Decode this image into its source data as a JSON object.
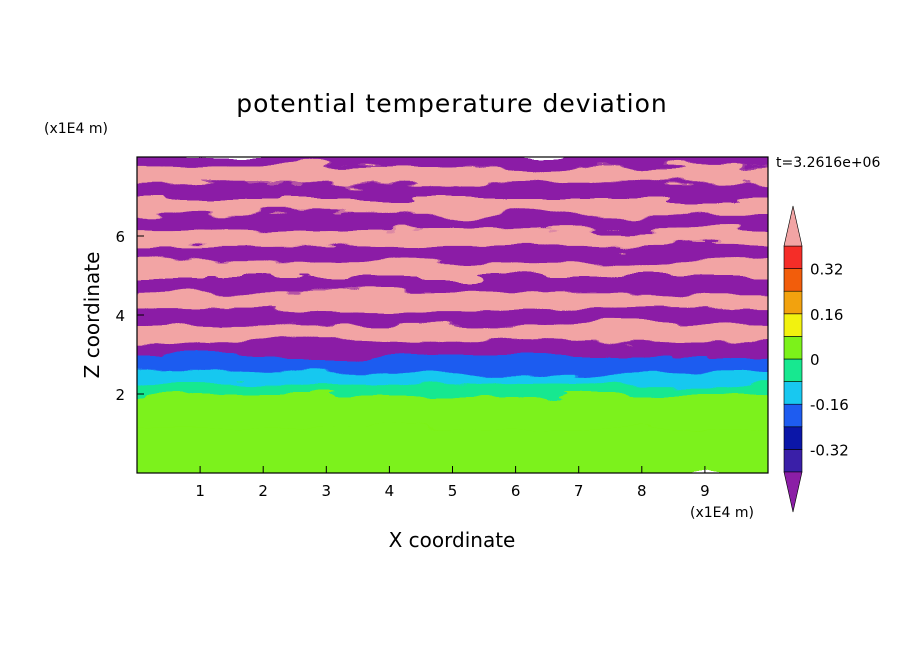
{
  "chart_data": {
    "type": "heatmap",
    "title": "potential temperature deviation",
    "xlabel": "X coordinate",
    "ylabel": "Z coordinate",
    "x_unit": "(x1E4 m)",
    "y_unit": "(x1E4 m)",
    "time_label": "t=3.2616e+06",
    "xlim": [
      0,
      10
    ],
    "ylim": [
      0,
      8
    ],
    "x_ticks": [
      1,
      2,
      3,
      4,
      5,
      6,
      7,
      8,
      9
    ],
    "y_ticks": [
      2,
      4,
      6
    ],
    "grid": false,
    "colorbar": {
      "placement": "right",
      "extend": "both",
      "levels": [
        -0.4,
        -0.32,
        -0.24,
        -0.16,
        -0.08,
        0,
        0.08,
        0.16,
        0.24,
        0.32,
        0.4
      ],
      "colors": [
        "#8B1EA6",
        "#3A1FA8",
        "#0B16A8",
        "#1E5CF0",
        "#18C8F0",
        "#17E890",
        "#7CF21A",
        "#F2F20F",
        "#F2A20E",
        "#F25D0B",
        "#F52D28",
        "#F2A4A4"
      ],
      "tick_values": [
        -0.32,
        -0.16,
        0,
        0.16,
        0.32
      ],
      "tick_labels": [
        "-0.32",
        "-0.16",
        "0",
        "0.16",
        "0.32"
      ]
    },
    "bands": [
      {
        "z": [
          0,
          1.2
        ],
        "value": 0.05
      },
      {
        "z": [
          1.2,
          2.0
        ],
        "value": 0.02
      },
      {
        "z": [
          2.0,
          2.3
        ],
        "value": -0.05
      },
      {
        "z": [
          2.3,
          2.6
        ],
        "value": -0.12
      },
      {
        "z": [
          2.6,
          3.0
        ],
        "value": -0.2
      },
      {
        "z": [
          3.0,
          3.4
        ],
        "value": -0.45
      },
      {
        "z": [
          3.4,
          3.8
        ],
        "value": 0.45
      },
      {
        "z": [
          3.8,
          4.2
        ],
        "value": -0.45
      },
      {
        "z": [
          4.2,
          4.6
        ],
        "value": 0.45
      },
      {
        "z": [
          4.6,
          5.0
        ],
        "value": -0.45
      },
      {
        "z": [
          5.0,
          5.4
        ],
        "value": 0.45
      },
      {
        "z": [
          5.4,
          5.8
        ],
        "value": -0.45
      },
      {
        "z": [
          5.8,
          6.2
        ],
        "value": 0.45
      },
      {
        "z": [
          6.2,
          6.6
        ],
        "value": -0.45
      },
      {
        "z": [
          6.6,
          7.0
        ],
        "value": 0.45
      },
      {
        "z": [
          7.0,
          7.4
        ],
        "value": -0.45
      },
      {
        "z": [
          7.4,
          7.8
        ],
        "value": 0.45
      },
      {
        "z": [
          7.8,
          8.0
        ],
        "value": -0.45
      }
    ]
  }
}
